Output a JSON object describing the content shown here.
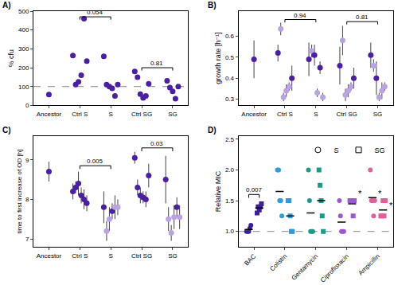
{
  "chart_data": [
    {
      "label": "A)",
      "type": "scatter",
      "y_label": "% cfu",
      "categories": [
        "Ancestor",
        "Ctrl S",
        "S",
        "Ctrl SG",
        "SG"
      ],
      "ylim": [
        0,
        500
      ],
      "yticks": [
        0,
        100,
        200,
        300,
        400,
        500
      ],
      "reference_line": 100,
      "series": [
        {
          "color": "#4b1fa3",
          "values": [
            [
              58
            ],
            [
              265,
              110,
              125,
              160,
              460,
              235
            ],
            [
              260,
              110,
              100,
              90,
              50,
              110
            ],
            [
              180,
              150,
              60,
              40,
              50,
              115
            ],
            [
              130,
              95,
              75,
              35,
              100
            ]
          ]
        }
      ],
      "brackets": [
        {
          "from": "Ctrl S",
          "to": "S",
          "y": 470,
          "label": "0.054"
        },
        {
          "from": "Ctrl SG",
          "to": "SG",
          "y": 200,
          "label": "0.81"
        }
      ]
    },
    {
      "label": "B)",
      "type": "scatter",
      "y_label": "growth rate [h⁻¹]",
      "categories": [
        "Ancestor",
        "Ctrl S",
        "S",
        "Ctrl SG",
        "SG"
      ],
      "ylim": [
        0.27,
        0.72
      ],
      "yticks": [
        0.3,
        0.4,
        0.5,
        0.6
      ],
      "series": [
        {
          "values": [
            [
              0.49
            ],
            [
              0.52,
              0.635,
              0.31,
              0.34,
              0.36,
              0.4
            ],
            [
              0.49,
              0.53,
              0.51,
              0.33,
              0.45,
              0.31
            ],
            [
              0.46,
              0.58,
              0.32,
              0.34,
              0.36,
              0.4
            ],
            [
              0.51,
              0.46,
              0.4,
              0.31,
              0.34,
              0.36
            ]
          ],
          "errors": [
            [
              0.09
            ],
            [
              0.04,
              0.03,
              0.02,
              0.03,
              0.02,
              0.06
            ],
            [
              0.08,
              0.03,
              0.05,
              0.02,
              0.03,
              0.02
            ],
            [
              0.09,
              0.07,
              0.03,
              0.03,
              0.02,
              0.05
            ],
            [
              0.06,
              0.03,
              0.08,
              0.02,
              0.04,
              0.02
            ]
          ],
          "colors": [
            [
              "#4b1fa3"
            ],
            [
              "#4b1fa3",
              "#b9a3e3",
              "#b9a3e3",
              "#b9a3e3",
              "#b9a3e3",
              "#4b1fa3"
            ],
            [
              "#4b1fa3",
              "#b9a3e3",
              "#4b1fa3",
              "#b9a3e3",
              "#4b1fa3",
              "#b9a3e3"
            ],
            [
              "#4b1fa3",
              "#b9a3e3",
              "#b9a3e3",
              "#b9a3e3",
              "#b9a3e3",
              "#4b1fa3"
            ],
            [
              "#4b1fa3",
              "#b9a3e3",
              "#4b1fa3",
              "#b9a3e3",
              "#b9a3e3",
              "#b9a3e3"
            ]
          ]
        }
      ],
      "brackets": [
        {
          "from": "Ctrl S",
          "to": "S",
          "y": 0.68,
          "label": "0.94"
        },
        {
          "from": "Ctrl SG",
          "to": "SG",
          "y": 0.67,
          "label": "0.81"
        }
      ]
    },
    {
      "label": "C)",
      "type": "scatter",
      "y_label": "time to first increase of OD [h]",
      "categories": [
        "Ancestor",
        "Ctrl S",
        "S",
        "Ctrl SG",
        "SG"
      ],
      "ylim": [
        6.8,
        9.6
      ],
      "yticks": [
        7,
        8,
        9
      ],
      "series": [
        {
          "values": [
            [
              8.7
            ],
            [
              8.2,
              8.3,
              8.4,
              8.1,
              8.0,
              7.9
            ],
            [
              7.8,
              7.2,
              7.5,
              7.7,
              7.8,
              7.8
            ],
            [
              9.05,
              8.3,
              8.1,
              8.05,
              8.0,
              8.6
            ],
            [
              8.5,
              7.5,
              7.15,
              7.55,
              7.8,
              7.55
            ]
          ],
          "errors": [
            [
              0.25
            ],
            [
              0.2,
              0.15,
              0.3,
              0.2,
              0.25,
              0.2
            ],
            [
              0.4,
              0.25,
              0.3,
              0.2,
              0.3,
              0.2
            ],
            [
              0.15,
              0.2,
              0.2,
              0.15,
              0.2,
              0.3
            ],
            [
              0.6,
              0.3,
              0.2,
              0.3,
              0.25,
              0.3
            ]
          ],
          "colors": [
            [
              "#4b1fa3"
            ],
            [
              "#4b1fa3",
              "#4b1fa3",
              "#4b1fa3",
              "#4b1fa3",
              "#4b1fa3",
              "#4b1fa3"
            ],
            [
              "#4b1fa3",
              "#b9a3e3",
              "#b9a3e3",
              "#4b1fa3",
              "#b9a3e3",
              "#b9a3e3"
            ],
            [
              "#4b1fa3",
              "#4b1fa3",
              "#4b1fa3",
              "#4b1fa3",
              "#4b1fa3",
              "#4b1fa3"
            ],
            [
              "#4b1fa3",
              "#b9a3e3",
              "#b9a3e3",
              "#b9a3e3",
              "#4b1fa3",
              "#b9a3e3"
            ]
          ]
        }
      ],
      "brackets": [
        {
          "from": "Ctrl S",
          "to": "S",
          "y": 8.85,
          "label": "0.005"
        },
        {
          "from": "Ctrl SG",
          "to": "SG",
          "y": 9.3,
          "label": "0.03"
        }
      ]
    },
    {
      "label": "D)",
      "type": "scatter",
      "y_label": "Relative MIC",
      "categories": [
        "BAC",
        "Colistin",
        "Gentamycin",
        "Ciprofloxacin",
        "Ampicillin"
      ],
      "colors": [
        "#3d1e9e",
        "#2d9cdb",
        "#1b9a8a",
        "#9b59d0",
        "#e0609a"
      ],
      "ylim": [
        0.75,
        2.55
      ],
      "yticks": [
        {
          "value": 1,
          "label": "1.0"
        },
        {
          "value": 1.5,
          "label": "1.5"
        },
        {
          "value": 2,
          "label": "2.0"
        },
        {
          "value": 2.5,
          "label": "2.5"
        }
      ],
      "reference_line": 1,
      "legend": "upper right",
      "series": [
        {
          "name": "S",
          "marker": "circle",
          "values": [
            [
              1.0,
              1.0,
              1.0,
              1.05,
              1.1
            ],
            [
              2.0,
              2.0,
              1.5,
              1.5,
              1.25
            ],
            [
              2.0,
              1.5,
              1.0,
              1.0,
              1.0
            ],
            [
              1.5,
              1.25,
              1.0,
              1.0,
              1.0
            ],
            [
              2.0,
              1.5,
              1.5,
              1.25,
              1.5
            ]
          ],
          "means": [
            1.03,
            1.65,
            1.3,
            1.15,
            1.55
          ]
        },
        {
          "name": "SG",
          "marker": "square",
          "values": [
            [
              1.3,
              1.4,
              1.35,
              1.4,
              1.45
            ],
            [
              1.5,
              1.5,
              1.25,
              1.0,
              1.0
            ],
            [
              2.0,
              1.75,
              1.5,
              1.25,
              1.0
            ],
            [
              1.5,
              1.5,
              1.5,
              1.25,
              1.5
            ],
            [
              1.25,
              1.25,
              1.5,
              1.25,
              1.5
            ]
          ],
          "means": [
            1.38,
            1.25,
            1.5,
            1.45,
            1.35
          ]
        }
      ],
      "brackets": [
        {
          "category": "BAC",
          "from": "S",
          "to": "SG",
          "y": 1.6,
          "label": "0.007"
        }
      ],
      "annotations": [
        {
          "category": "Ciprofloxacin",
          "series": "SG",
          "y": 1.62,
          "text": "*"
        },
        {
          "category": "Ampicillin",
          "series": "S",
          "y": 1.62,
          "text": "*"
        },
        {
          "category": "Ampicillin",
          "series": "SG",
          "y": 1.42,
          "text": "*"
        }
      ]
    }
  ]
}
